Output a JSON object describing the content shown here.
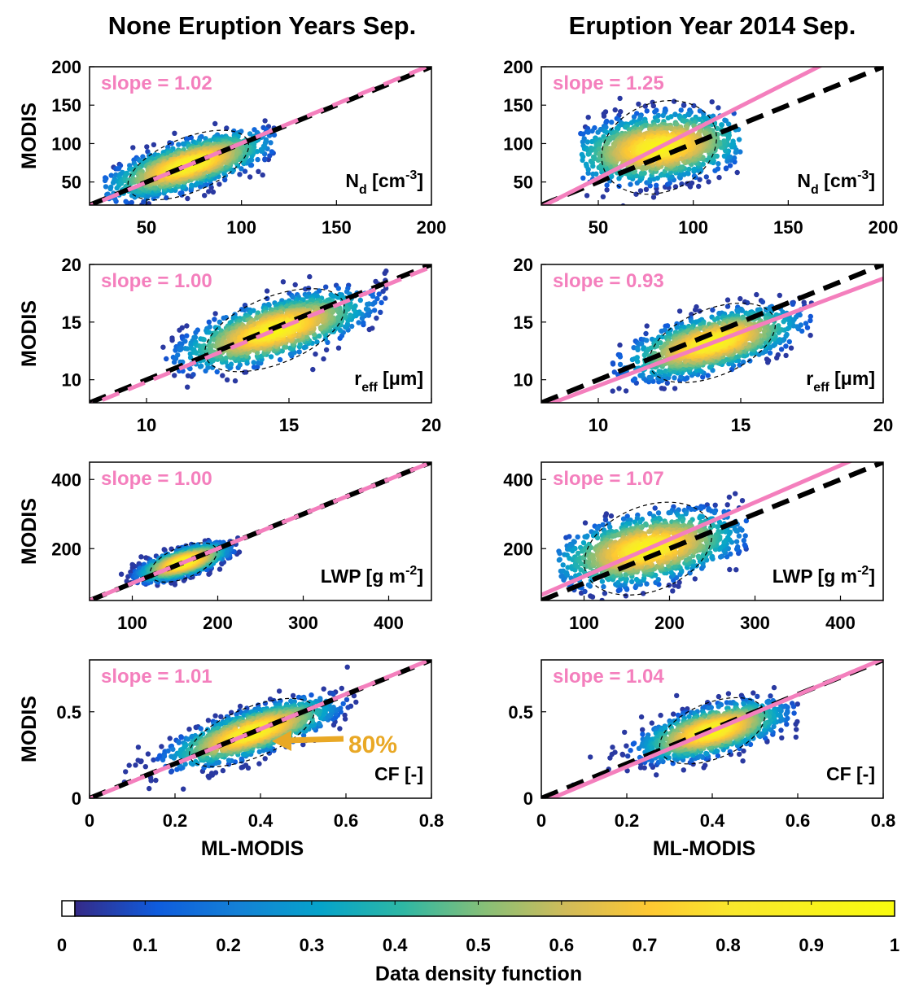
{
  "titles": {
    "left": "None Eruption Years Sep.",
    "right": "Eruption Year 2014 Sep."
  },
  "ylabel": "MODIS",
  "xlabel": "ML-MODIS",
  "colorbar": {
    "label": "Data density function",
    "ticks": [
      "0",
      "0.1",
      "0.2",
      "0.3",
      "0.4",
      "0.5",
      "0.6",
      "0.7",
      "0.8",
      "0.9",
      "1"
    ],
    "colormap": "parula"
  },
  "annotation": {
    "text": "80%",
    "color": "#e9a825"
  },
  "colors": {
    "fit_line": "#f47fbd",
    "one_to_one": "#000000"
  },
  "chart_data": [
    {
      "type": "scatter",
      "title": "None Eruption Years Sep.",
      "variable": "N",
      "variable_sub": "d",
      "variable_unit": " [cm",
      "variable_sup": "-3",
      "variable_tail": "]",
      "slope_label": "slope = 1.02",
      "slope": 1.02,
      "xlim": [
        20,
        200
      ],
      "ylim": [
        20,
        200
      ],
      "xticks": [
        "50",
        "100",
        "150",
        "200"
      ],
      "yticks": [
        "50",
        "100",
        "150",
        "200"
      ],
      "ytick_vals": [
        50,
        100,
        150,
        200
      ],
      "cloud": {
        "center": [
          72,
          72
        ],
        "spread_along": 26,
        "spread_across": 11,
        "x_range": [
          28,
          118
        ]
      }
    },
    {
      "type": "scatter",
      "title": "Eruption Year 2014 Sep.",
      "variable": "N",
      "variable_sub": "d",
      "variable_unit": " [cm",
      "variable_sup": "-3",
      "variable_tail": "]",
      "slope_label": "slope = 1.25",
      "slope": 1.25,
      "xlim": [
        20,
        200
      ],
      "ylim": [
        20,
        200
      ],
      "xticks": [
        "50",
        "100",
        "150",
        "200"
      ],
      "yticks": [
        "50",
        "100",
        "150",
        "200"
      ],
      "ytick_vals": [
        50,
        100,
        150,
        200
      ],
      "cloud": {
        "center": [
          82,
          95
        ],
        "spread_along": 24,
        "spread_across": 18,
        "x_range": [
          40,
          125
        ]
      }
    },
    {
      "type": "scatter",
      "variable": "r",
      "variable_sub": "eff",
      "variable_unit": " [μm",
      "variable_sup": "",
      "variable_tail": "]",
      "slope_label": "slope = 1.00",
      "slope": 1.0,
      "xlim": [
        8,
        20
      ],
      "ylim": [
        8,
        20
      ],
      "xticks": [
        "10",
        "15",
        "20"
      ],
      "yticks": [
        "10",
        "15",
        "20"
      ],
      "ytick_vals": [
        10,
        15,
        20
      ],
      "cloud": {
        "center": [
          14.5,
          14.3
        ],
        "spread_along": 2.0,
        "spread_across": 0.9,
        "x_range": [
          10.5,
          18.5
        ]
      }
    },
    {
      "type": "scatter",
      "variable": "r",
      "variable_sub": "eff",
      "variable_unit": " [μm",
      "variable_sup": "",
      "variable_tail": "]",
      "slope_label": "slope = 0.93",
      "slope": 0.93,
      "xlim": [
        8,
        20
      ],
      "ylim": [
        8,
        20
      ],
      "xticks": [
        "10",
        "15",
        "20"
      ],
      "yticks": [
        "10",
        "15",
        "20"
      ],
      "ytick_vals": [
        10,
        15,
        20
      ],
      "cloud": {
        "center": [
          14.0,
          13.2
        ],
        "spread_along": 1.8,
        "spread_across": 0.9,
        "x_range": [
          10.5,
          17.5
        ]
      }
    },
    {
      "type": "scatter",
      "variable": "LWP [g m",
      "variable_sub": "",
      "variable_unit": "",
      "variable_sup": "-2",
      "variable_tail": "]",
      "slope_label": "slope = 1.00",
      "slope": 1.0,
      "xlim": [
        50,
        450
      ],
      "ylim": [
        50,
        450
      ],
      "xticks": [
        "100",
        "200",
        "300",
        "400"
      ],
      "yticks": [
        "200",
        "400"
      ],
      "ytick_vals": [
        200,
        400
      ],
      "cloud": {
        "center": [
          160,
          160
        ],
        "spread_along": 32,
        "spread_across": 14,
        "x_range": [
          85,
          230
        ]
      }
    },
    {
      "type": "scatter",
      "variable": "LWP [g m",
      "variable_sub": "",
      "variable_unit": "",
      "variable_sup": "-2",
      "variable_tail": "]",
      "slope_label": "slope = 1.07",
      "slope": 1.07,
      "xlim": [
        50,
        450
      ],
      "ylim": [
        50,
        450
      ],
      "xticks": [
        "100",
        "200",
        "300",
        "400"
      ],
      "yticks": [
        "200",
        "400"
      ],
      "ytick_vals": [
        200,
        400
      ],
      "cloud": {
        "center": [
          175,
          200
        ],
        "spread_along": 60,
        "spread_across": 38,
        "x_range": [
          70,
          290
        ]
      }
    },
    {
      "type": "scatter",
      "variable": "CF [-]",
      "variable_sub": "",
      "variable_unit": "",
      "variable_sup": "",
      "variable_tail": "",
      "slope_label": "slope = 1.01",
      "slope": 1.01,
      "xlim": [
        0,
        0.8
      ],
      "ylim": [
        0,
        0.8
      ],
      "xticks": [
        "0",
        "0.2",
        "0.4",
        "0.6",
        "0.8"
      ],
      "yticks": [
        "0",
        "0.5"
      ],
      "ytick_vals": [
        0,
        0.5
      ],
      "cloud": {
        "center": [
          0.38,
          0.38
        ],
        "spread_along": 0.12,
        "spread_across": 0.045,
        "x_range": [
          0.07,
          0.63
        ]
      }
    },
    {
      "type": "scatter",
      "variable": "CF [-]",
      "variable_sub": "",
      "variable_unit": "",
      "variable_sup": "",
      "variable_tail": "",
      "slope_label": "slope = 1.04",
      "slope": 1.04,
      "xlim": [
        0,
        0.8
      ],
      "ylim": [
        0,
        0.8
      ],
      "xticks": [
        "0",
        "0.2",
        "0.4",
        "0.6",
        "0.8"
      ],
      "yticks": [
        "0",
        "0.5"
      ],
      "ytick_vals": [
        0,
        0.5
      ],
      "cloud": {
        "center": [
          0.4,
          0.39
        ],
        "spread_along": 0.1,
        "spread_across": 0.05,
        "x_range": [
          0.07,
          0.6
        ]
      }
    }
  ]
}
